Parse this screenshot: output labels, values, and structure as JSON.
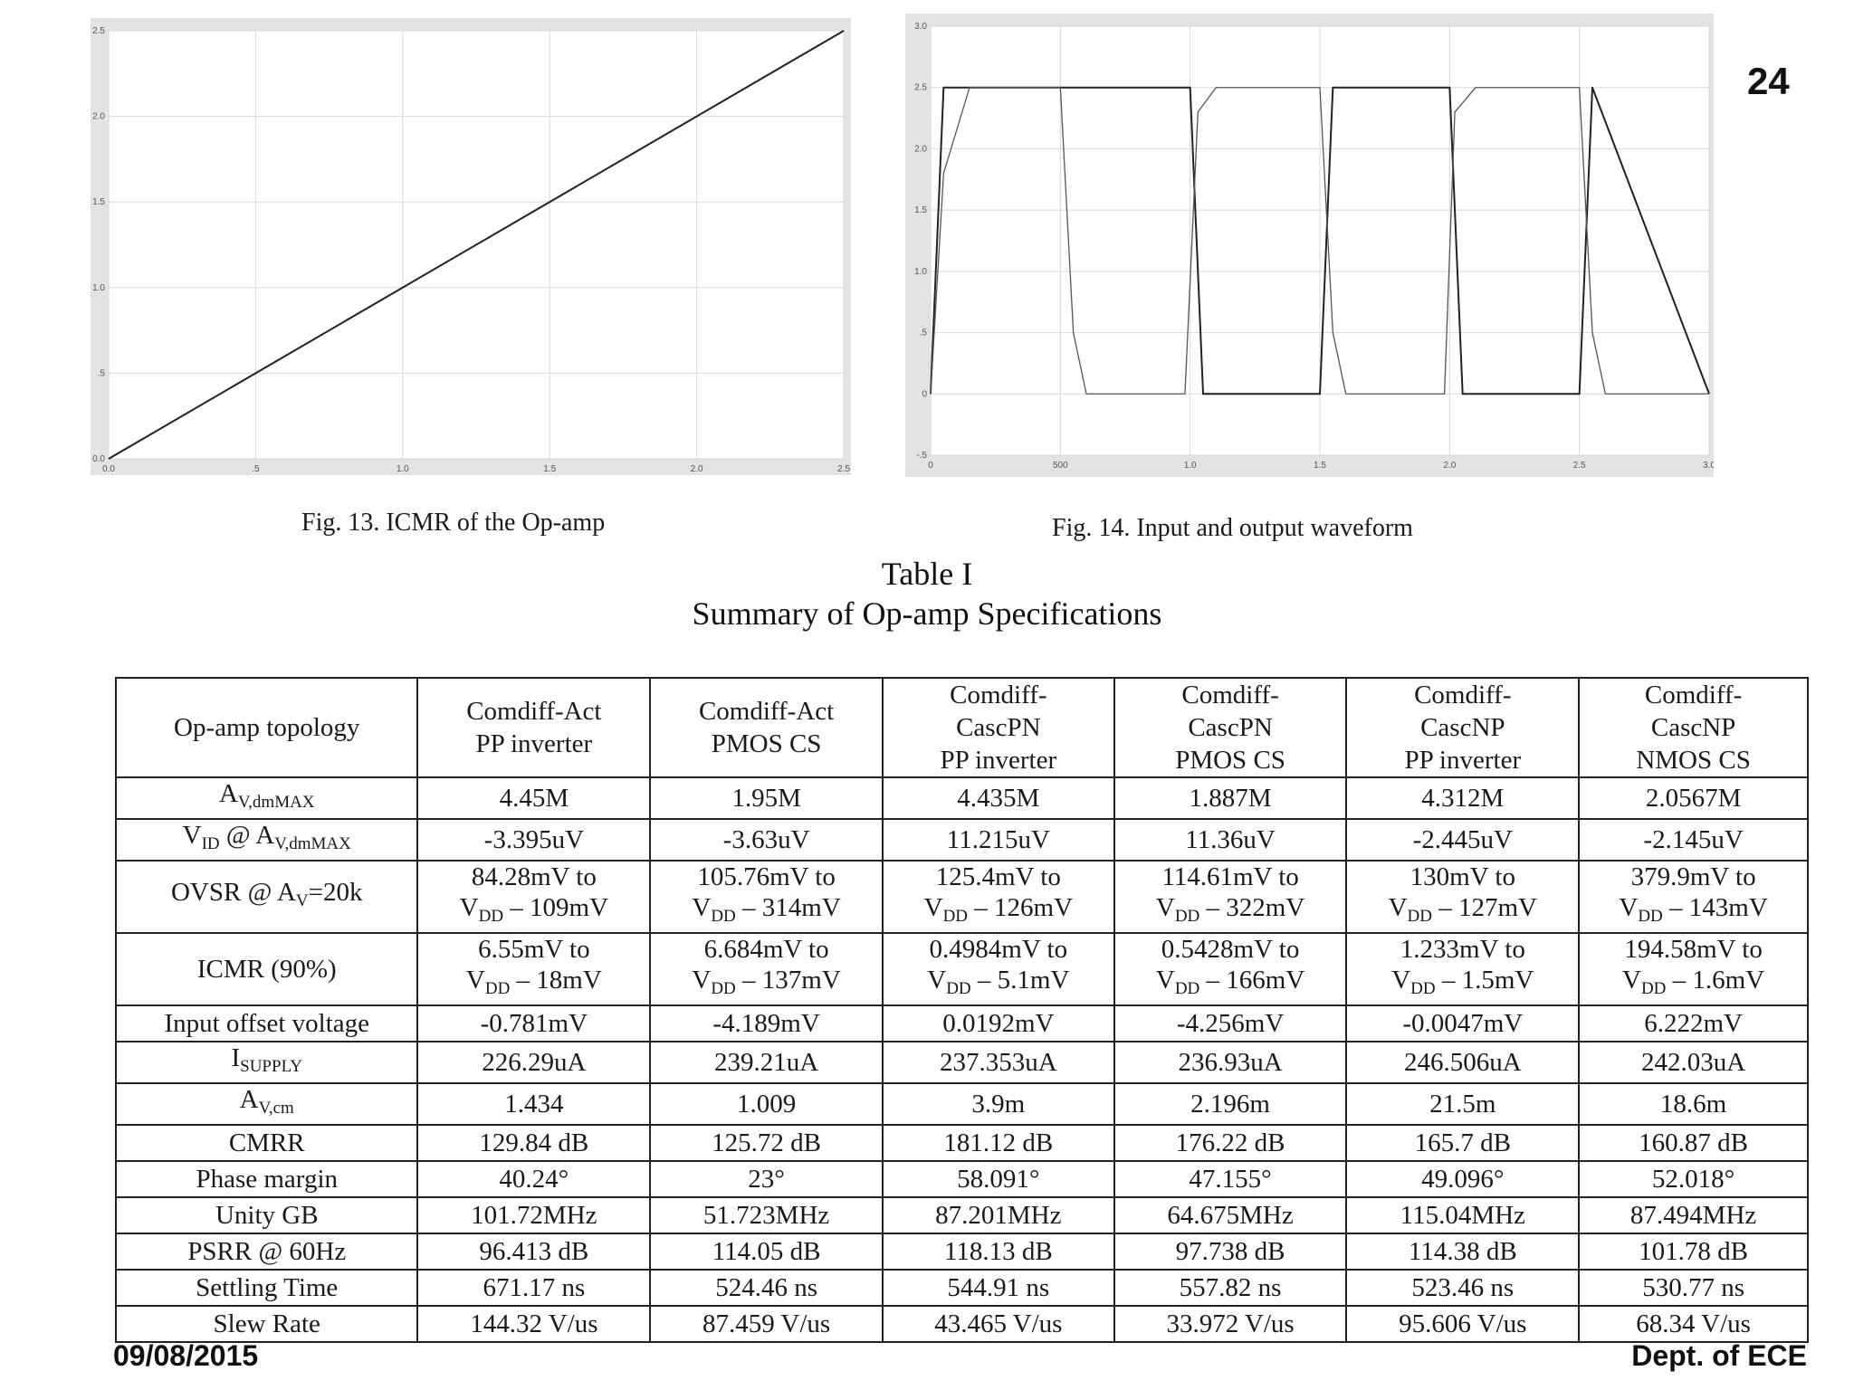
{
  "slide_number": "24",
  "footer": {
    "date": "09/08/2015",
    "dept": "Dept. of  ECE"
  },
  "figures": {
    "fig13_caption": "Fig. 13. ICMR of the Op-amp",
    "fig14_caption": "Fig. 14. Input and output waveform"
  },
  "chart_data": [
    {
      "type": "line",
      "x_ticks": [
        "0.0",
        ".5",
        "1.0",
        "1.5",
        "2.0",
        "2.5"
      ],
      "y_ticks": [
        "0.0",
        ".5",
        "1.0",
        "1.5",
        "2.0",
        "2.5"
      ],
      "xlim": [
        0,
        2.5
      ],
      "ylim": [
        0,
        2.5
      ],
      "grid": true,
      "series": [
        {
          "x": [
            0,
            2.5
          ],
          "y": [
            0,
            2.5
          ]
        }
      ]
    },
    {
      "type": "line",
      "x_ticks": [
        "0",
        "500",
        "1.0",
        "1.5",
        "2.0",
        "2.5",
        "3.0"
      ],
      "y_ticks": [
        "-.5",
        "0",
        ".5",
        "1.0",
        "1.5",
        "2.0",
        "2.5",
        "3.0"
      ],
      "xlim": [
        0,
        3.0
      ],
      "ylim": [
        -0.5,
        3.0
      ],
      "grid": true,
      "series": [
        {
          "x": [
            0,
            0.05,
            0.1,
            1.0,
            1.05,
            1.5,
            1.55,
            2.0,
            2.05,
            2.5,
            2.55,
            3.0
          ],
          "y": [
            0,
            2.5,
            2.5,
            2.5,
            0,
            0,
            2.5,
            2.5,
            0,
            0,
            2.5,
            0
          ]
        },
        {
          "x": [
            0,
            0.05,
            0.15,
            0.5,
            0.55,
            0.6,
            0.98,
            1.03,
            1.1,
            1.5,
            1.55,
            1.6,
            1.98,
            2.02,
            2.1,
            2.5,
            2.55,
            2.6,
            3.0
          ],
          "y": [
            0,
            1.8,
            2.5,
            2.5,
            0.5,
            0,
            0,
            2.3,
            2.5,
            2.5,
            0.5,
            0,
            0,
            2.3,
            2.5,
            2.5,
            0.5,
            0,
            0
          ]
        }
      ]
    }
  ],
  "table": {
    "title": "Table I",
    "subtitle": "Summary of Op-amp Specifications",
    "header": {
      "label": "Op-amp topology",
      "columns": [
        [
          "Comdiff-Act",
          "PP inverter"
        ],
        [
          "Comdiff-Act",
          "PMOS CS"
        ],
        [
          "Comdiff-",
          "CascPN",
          "PP inverter"
        ],
        [
          "Comdiff-",
          "CascPN",
          "PMOS CS"
        ],
        [
          "Comdiff-",
          "CascNP",
          "PP inverter"
        ],
        [
          "Comdiff-",
          "CascNP",
          "NMOS CS"
        ]
      ]
    },
    "rows": [
      {
        "label": {
          "main": "A",
          "sub": "V,dmMAX"
        },
        "values": [
          "4.45M",
          "1.95M",
          "4.435M",
          "1.887M",
          "4.312M",
          "2.0567M"
        ]
      },
      {
        "label": {
          "main": "V",
          "sub": "ID",
          "tail": " @ A",
          "sub2": "V,dmMAX"
        },
        "values": [
          "-3.395uV",
          "-3.63uV",
          "11.215uV",
          "11.36uV",
          "-2.445uV",
          "-2.145uV"
        ]
      },
      {
        "label": {
          "main": "OVSR @ A",
          "sub": "V",
          "tail": "=20k"
        },
        "two_line": true,
        "values": [
          [
            "84.28mV to",
            "109mV"
          ],
          [
            "105.76mV to",
            "314mV"
          ],
          [
            "125.4mV to",
            "126mV"
          ],
          [
            "114.61mV to",
            "322mV"
          ],
          [
            "130mV to",
            "127mV"
          ],
          [
            "379.9mV to",
            "143mV"
          ]
        ]
      },
      {
        "label": {
          "main": "ICMR (90%)"
        },
        "two_line": true,
        "values": [
          [
            "6.55mV to",
            "18mV"
          ],
          [
            "6.684mV to",
            "137mV"
          ],
          [
            "0.4984mV to",
            "5.1mV"
          ],
          [
            "0.5428mV to",
            "166mV"
          ],
          [
            "1.233mV to",
            "1.5mV"
          ],
          [
            "194.58mV to",
            "1.6mV"
          ]
        ]
      },
      {
        "label": {
          "main": "Input offset voltage"
        },
        "values": [
          "-0.781mV",
          "-4.189mV",
          "0.0192mV",
          "-4.256mV",
          "-0.0047mV",
          "6.222mV"
        ]
      },
      {
        "label": {
          "main": "I",
          "sub": "SUPPLY"
        },
        "values": [
          "226.29uA",
          "239.21uA",
          "237.353uA",
          "236.93uA",
          "246.506uA",
          "242.03uA"
        ]
      },
      {
        "label": {
          "main": "A",
          "sub": "V,cm"
        },
        "values": [
          "1.434",
          "1.009",
          "3.9m",
          "2.196m",
          "21.5m",
          "18.6m"
        ]
      },
      {
        "label": {
          "main": "CMRR"
        },
        "values": [
          "129.84 dB",
          "125.72 dB",
          "181.12 dB",
          "176.22 dB",
          "165.7 dB",
          "160.87 dB"
        ]
      },
      {
        "label": {
          "main": "Phase margin"
        },
        "values": [
          "40.24°",
          "23°",
          "58.091°",
          "47.155°",
          "49.096°",
          "52.018°"
        ]
      },
      {
        "label": {
          "main": "Unity GB"
        },
        "values": [
          "101.72MHz",
          "51.723MHz",
          "87.201MHz",
          "64.675MHz",
          "115.04MHz",
          "87.494MHz"
        ]
      },
      {
        "label": {
          "main": "PSRR @ 60Hz"
        },
        "values": [
          "96.413 dB",
          "114.05 dB",
          "118.13 dB",
          "97.738 dB",
          "114.38 dB",
          "101.78 dB"
        ]
      },
      {
        "label": {
          "main": "Settling Time"
        },
        "values": [
          "671.17 ns",
          "524.46 ns",
          "544.91 ns",
          "557.82 ns",
          "523.46 ns",
          "530.77 ns"
        ]
      },
      {
        "label": {
          "main": "Slew Rate"
        },
        "values": [
          "144.32 V/us",
          "87.459 V/us",
          "43.465 V/us",
          "33.972 V/us",
          "95.606 V/us",
          "68.34 V/us"
        ]
      }
    ],
    "vdd": {
      "main": "V",
      "sub": "DD",
      "sep": " – "
    }
  }
}
